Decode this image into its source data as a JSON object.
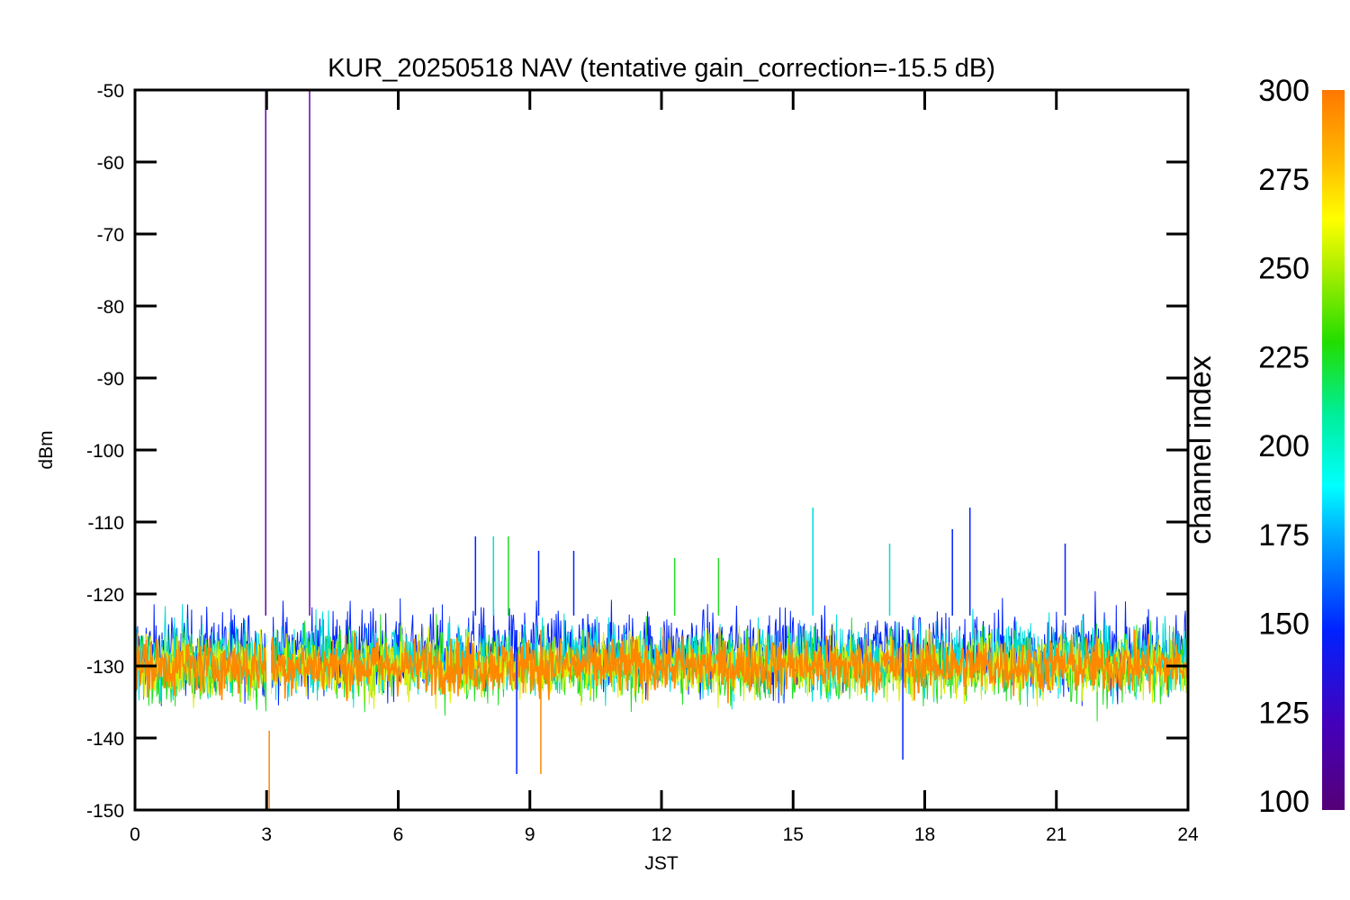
{
  "chart_data": {
    "type": "line",
    "title": "KUR_20250518 NAV (tentative gain_correction=-15.5 dB)",
    "xlabel": "JST",
    "ylabel": "dBm",
    "xlim": [
      0,
      24
    ],
    "ylim": [
      -150,
      -50
    ],
    "x_ticks": [
      "0",
      "3",
      "6",
      "9",
      "12",
      "15",
      "18",
      "21",
      "24"
    ],
    "y_ticks": [
      "-50",
      "-60",
      "-70",
      "-80",
      "-90",
      "-100",
      "-110",
      "-120",
      "-130",
      "-140",
      "-150"
    ],
    "colorbar": {
      "label": "channel index",
      "range": [
        100,
        300
      ],
      "ticks": [
        "100",
        "125",
        "150",
        "175",
        "200",
        "225",
        "250",
        "275",
        "300"
      ],
      "colormap": "rainbow (purple-blue-cyan-green-yellow-orange)"
    },
    "series": [
      {
        "channel_index": 290,
        "color": "#ff8800",
        "band_center": -130,
        "band_half_width": 6,
        "description_level": "dominant"
      },
      {
        "channel_index": 260,
        "color": "#ddee00",
        "band_center": -130,
        "band_half_width": 7
      },
      {
        "channel_index": 230,
        "color": "#22dd22",
        "band_center": -130,
        "band_half_width": 8
      },
      {
        "channel_index": 190,
        "color": "#00dddd",
        "band_center": -129,
        "band_half_width": 8
      },
      {
        "channel_index": 140,
        "color": "#0022ff",
        "band_center": -128,
        "band_half_width": 9
      }
    ],
    "data_gap": {
      "x_start": 3.0,
      "x_end": 3.1
    },
    "spikes": [
      {
        "x": 2.98,
        "y_top": -50,
        "color": "#6600aa"
      },
      {
        "x": 3.98,
        "y_top": -50,
        "color": "#6600aa"
      },
      {
        "x": 3.06,
        "y_bottom": -150,
        "color": "#ff8800"
      },
      {
        "x": 15.45,
        "y_top": -108,
        "color": "#00dddd"
      },
      {
        "x": 19.03,
        "y_top": -108,
        "color": "#0022ff"
      },
      {
        "x": 18.63,
        "y_top": -111,
        "color": "#0022ff"
      },
      {
        "x": 7.76,
        "y_top": -112,
        "color": "#0022ff"
      },
      {
        "x": 8.17,
        "y_top": -112,
        "color": "#00dddd"
      },
      {
        "x": 8.51,
        "y_top": -112,
        "color": "#22dd22"
      },
      {
        "x": 17.2,
        "y_top": -113,
        "color": "#00dddd"
      },
      {
        "x": 21.2,
        "y_top": -113,
        "color": "#0022ff"
      },
      {
        "x": 10.0,
        "y_top": -114,
        "color": "#0022ff"
      },
      {
        "x": 12.3,
        "y_top": -115,
        "color": "#22dd22"
      },
      {
        "x": 9.2,
        "y_top": -114,
        "color": "#0022ff"
      },
      {
        "x": 13.3,
        "y_top": -115,
        "color": "#22dd22"
      },
      {
        "x": 8.7,
        "y_bottom": -145,
        "color": "#0022ff"
      },
      {
        "x": 9.25,
        "y_bottom": -145,
        "color": "#ff8800"
      },
      {
        "x": 17.5,
        "y_bottom": -143,
        "color": "#0022ff"
      }
    ]
  }
}
